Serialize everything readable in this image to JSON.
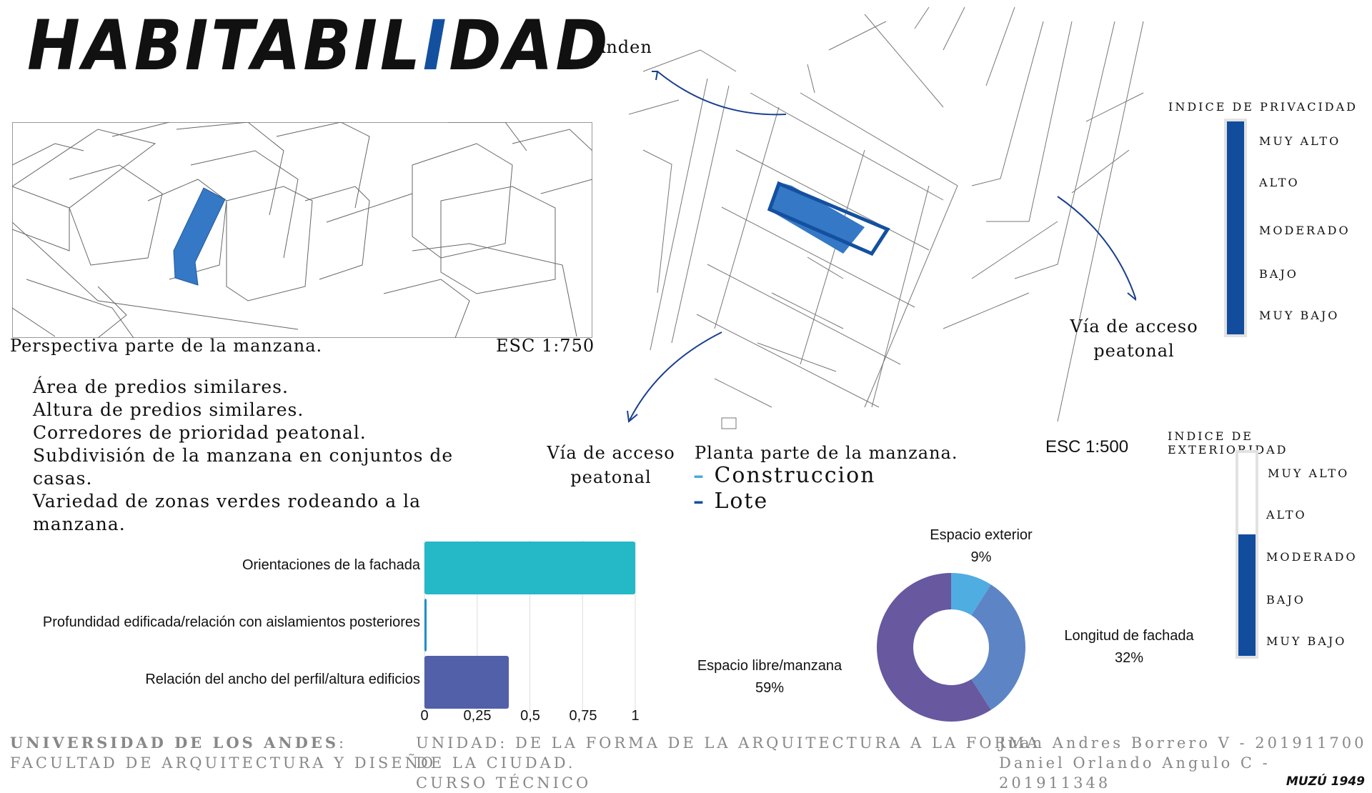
{
  "header": {
    "title_part1": "HABITABIL",
    "title_accent": "I",
    "title_part2": "DAD"
  },
  "perspective": {
    "caption": "Perspectiva parte de la manzana.",
    "scale": "ESC 1:750"
  },
  "notes": [
    "Área de predios similares.",
    "Altura de predios similares.",
    "Corredores de prioridad peatonal.",
    "Subdivisión de la manzana en conjuntos de",
    "casas.",
    "Variedad de zonas verdes rodeando a la",
    "manzana."
  ],
  "plan": {
    "anden": "Anden",
    "via_left": [
      "Vía de acceso",
      "peatonal"
    ],
    "via_right": [
      "Vía de acceso",
      "peatonal"
    ],
    "caption": "Planta parte de la manzana.",
    "scale": "ESC 1:500",
    "legend": [
      {
        "label": "Construccion",
        "color": "#4aa8e0"
      },
      {
        "label": "Lote",
        "color": "#1450a0"
      }
    ]
  },
  "privacy_index": {
    "title": "INDICE DE PRIVACIDAD",
    "levels": [
      "MUY ALTO",
      "ALTO",
      "MODERADO",
      "BAJO",
      "MUY BAJO"
    ],
    "level": 5,
    "max": 5,
    "color": "#114d9c"
  },
  "exterior_index": {
    "title": "INDICE DE EXTERIORIDAD",
    "levels": [
      "MUY ALTO",
      "ALTO",
      "MODERADO",
      "BAJO",
      "MUY BAJO"
    ],
    "level": 3,
    "max": 5,
    "color": "#114d9c"
  },
  "chart_data": [
    {
      "type": "bar",
      "orientation": "horizontal",
      "categories": [
        "Orientaciones de la fachada",
        "Profundidad edificada/relación con aislamientos posteriores",
        "Relación del ancho del perfil/altura edificios"
      ],
      "values": [
        1,
        0.01,
        0.4
      ],
      "colors": [
        "#25b8c6",
        "#1f8fd0",
        "#5260aa"
      ],
      "xlim": [
        0,
        1
      ],
      "xticks": [
        "0",
        "0,25",
        "0,5",
        "0,75",
        "1"
      ],
      "grid": true
    },
    {
      "type": "pie",
      "donut": true,
      "slices": [
        {
          "label": "Espacio exterior",
          "value": 9,
          "display": "9%",
          "color": "#4fade2"
        },
        {
          "label": "Longitud de fachada",
          "value": 32,
          "display": "32%",
          "color": "#5d84c4"
        },
        {
          "label": "Espacio libre/manzana",
          "value": 59,
          "display": "59%",
          "color": "#67589f"
        }
      ]
    }
  ],
  "footer": {
    "university": "UNIVERSIDAD DE LOS ANDES",
    "university_colon": ":",
    "faculty": "FACULTAD DE ARQUITECTURA Y DISEÑO",
    "unit": [
      "UNIDAD: DE LA FORMA DE LA ARQUITECTURA A LA FORMA",
      "DE LA CIUDAD.",
      "CURSO TÉCNICO"
    ],
    "authors": [
      "Juan Andres Borrero V - 201911700",
      "Daniel Orlando Angulo C - 201911348"
    ],
    "signature": "MUZÚ 1949"
  }
}
